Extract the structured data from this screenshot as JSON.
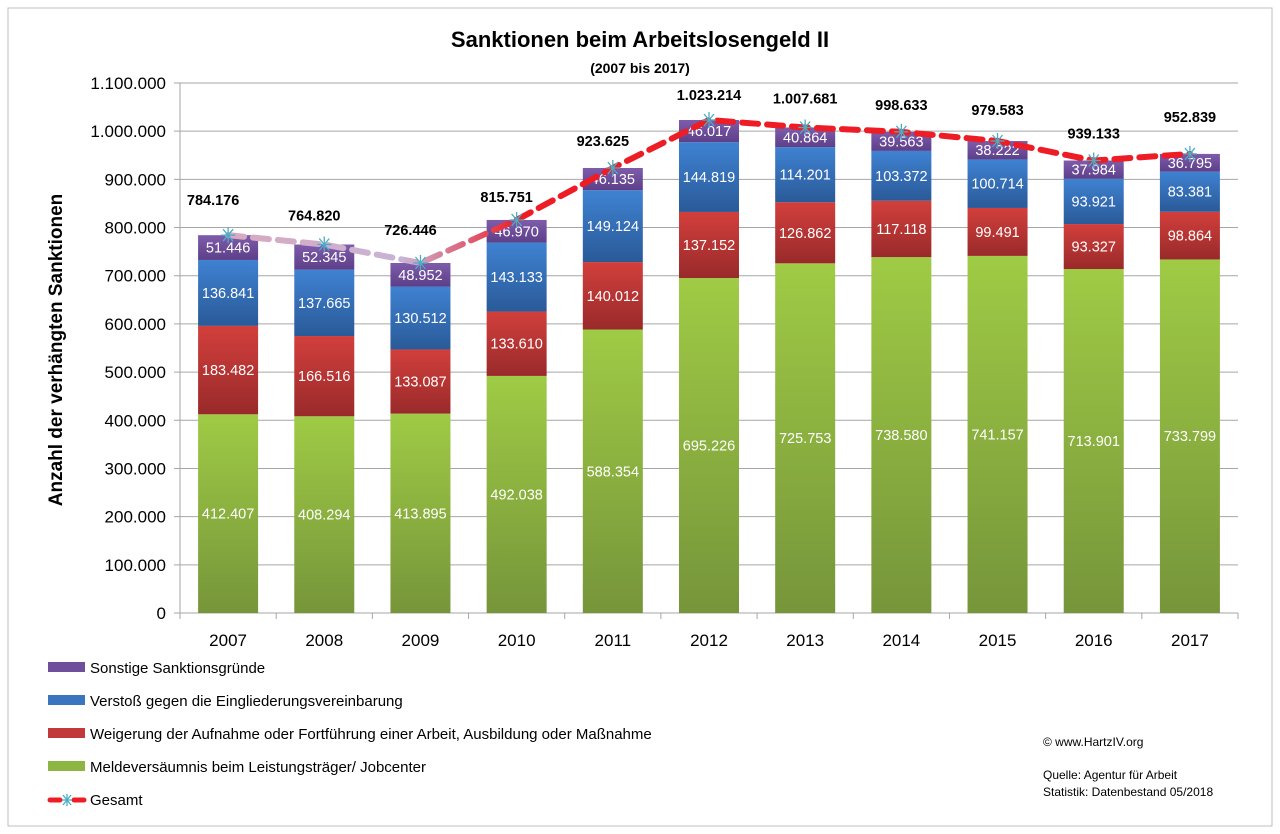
{
  "chart_data": {
    "type": "bar",
    "stacked": true,
    "title": "Sanktionen beim Arbeitslosengeld II",
    "subtitle": "(2007 bis 2017)",
    "xlabel": "",
    "ylabel": "Anzahl der verhängten Sanktionen",
    "ylim": [
      0,
      1100000
    ],
    "yticks": [
      0,
      100000,
      200000,
      300000,
      400000,
      500000,
      600000,
      700000,
      800000,
      900000,
      1000000,
      1100000
    ],
    "grid": true,
    "legend_position": "bottom-left",
    "categories": [
      "2007",
      "2008",
      "2009",
      "2010",
      "2011",
      "2012",
      "2013",
      "2014",
      "2015",
      "2016",
      "2017"
    ],
    "series": [
      {
        "name": "Meldeversäumnis beim Leistungsträger/ Jobcenter",
        "color": "#8db543",
        "values": [
          412407,
          408294,
          413895,
          492038,
          588354,
          695226,
          725753,
          738580,
          741157,
          713901,
          733799
        ]
      },
      {
        "name": "Weigerung der Aufnahme oder Fortführung einer Arbeit, Ausbildung oder Maßnahme",
        "color": "#c0393b",
        "values": [
          183482,
          166516,
          133087,
          133610,
          140012,
          137152,
          126862,
          117118,
          99491,
          93327,
          98864
        ]
      },
      {
        "name": "Verstoß gegen die Eingliederungsvereinbarung",
        "color": "#3a75c0",
        "values": [
          136841,
          137665,
          130512,
          143133,
          149124,
          144819,
          114201,
          103372,
          100714,
          93921,
          83381
        ]
      },
      {
        "name": "Sonstige Sanktionsgründe",
        "color": "#6f4f9c",
        "values": [
          51446,
          52345,
          48952,
          46970,
          46135,
          46017,
          40864,
          39563,
          38222,
          37984,
          36795
        ]
      }
    ],
    "line_series": {
      "name": "Gesamt",
      "color": "#ee1c24",
      "marker": "asterisk",
      "line_style": "dashed",
      "values": [
        784176,
        764820,
        726446,
        815751,
        923625,
        1023214,
        1007681,
        998633,
        979583,
        939133,
        952839
      ]
    }
  },
  "legend": {
    "items": [
      {
        "label": "Sonstige Sanktionsgründe",
        "color": "#6f4f9c"
      },
      {
        "label": "Verstoß gegen die Eingliederungsvereinbarung",
        "color": "#3a75c0"
      },
      {
        "label": "Weigerung der Aufnahme oder Fortführung einer Arbeit, Ausbildung oder Maßnahme",
        "color": "#c0393b"
      },
      {
        "label": "Meldeversäumnis beim Leistungsträger/ Jobcenter",
        "color": "#8db543"
      },
      {
        "label": "Gesamt",
        "color": "#ee1c24"
      }
    ]
  },
  "notes": {
    "copyright": "© www.HartzIV.org",
    "source": "Quelle: Agentur für Arbeit",
    "statistic": "Statistik: Datenbestand 05/2018"
  }
}
